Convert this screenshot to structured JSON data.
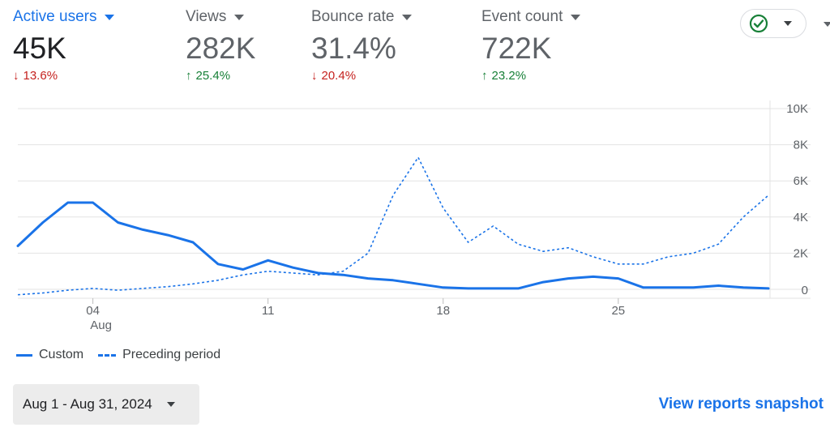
{
  "metrics": [
    {
      "label": "Active users",
      "value": "45K",
      "delta": "13.6%",
      "direction": "down"
    },
    {
      "label": "Views",
      "value": "282K",
      "delta": "25.4%",
      "direction": "up"
    },
    {
      "label": "Bounce rate",
      "value": "31.4%",
      "delta": "20.4%",
      "direction": "down"
    },
    {
      "label": "Event count",
      "value": "722K",
      "delta": "23.2%",
      "direction": "up"
    }
  ],
  "status_chip": {
    "icon": "check-circle-icon",
    "color": "#188038"
  },
  "colors": {
    "accent": "#1a73e8",
    "down": "#c5221f",
    "up": "#188038"
  },
  "chart_data": {
    "type": "line",
    "x_ticks": [
      {
        "day": 4,
        "label": "04",
        "sublabel": "Aug"
      },
      {
        "day": 11,
        "label": "11"
      },
      {
        "day": 18,
        "label": "18"
      },
      {
        "day": 25,
        "label": "25"
      }
    ],
    "y_ticks": [
      "0",
      "2K",
      "4K",
      "6K",
      "8K",
      "10K"
    ],
    "ylim": [
      0,
      10000
    ],
    "series": [
      {
        "name": "Custom",
        "style": "solid",
        "values": [
          {
            "x": 1,
            "y": 2400
          },
          {
            "x": 2,
            "y": 3700
          },
          {
            "x": 3,
            "y": 4800
          },
          {
            "x": 4,
            "y": 4800
          },
          {
            "x": 5,
            "y": 3700
          },
          {
            "x": 6,
            "y": 3300
          },
          {
            "x": 7,
            "y": 3000
          },
          {
            "x": 8,
            "y": 2600
          },
          {
            "x": 9,
            "y": 1400
          },
          {
            "x": 10,
            "y": 1100
          },
          {
            "x": 11,
            "y": 1600
          },
          {
            "x": 12,
            "y": 1200
          },
          {
            "x": 13,
            "y": 900
          },
          {
            "x": 14,
            "y": 800
          },
          {
            "x": 15,
            "y": 600
          },
          {
            "x": 16,
            "y": 500
          },
          {
            "x": 17,
            "y": 300
          },
          {
            "x": 18,
            "y": 100
          },
          {
            "x": 19,
            "y": 50
          },
          {
            "x": 20,
            "y": 50
          },
          {
            "x": 21,
            "y": 50
          },
          {
            "x": 22,
            "y": 400
          },
          {
            "x": 23,
            "y": 600
          },
          {
            "x": 24,
            "y": 700
          },
          {
            "x": 25,
            "y": 600
          },
          {
            "x": 26,
            "y": 100
          },
          {
            "x": 27,
            "y": 100
          },
          {
            "x": 28,
            "y": 100
          },
          {
            "x": 29,
            "y": 200
          },
          {
            "x": 30,
            "y": 100
          },
          {
            "x": 31,
            "y": 50
          }
        ]
      },
      {
        "name": "Preceding period",
        "style": "dashed",
        "values": [
          {
            "x": 1,
            "y": -300
          },
          {
            "x": 2,
            "y": -200
          },
          {
            "x": 3,
            "y": -50
          },
          {
            "x": 4,
            "y": 50
          },
          {
            "x": 5,
            "y": -50
          },
          {
            "x": 6,
            "y": 50
          },
          {
            "x": 7,
            "y": 150
          },
          {
            "x": 8,
            "y": 300
          },
          {
            "x": 9,
            "y": 500
          },
          {
            "x": 10,
            "y": 800
          },
          {
            "x": 11,
            "y": 1000
          },
          {
            "x": 12,
            "y": 900
          },
          {
            "x": 13,
            "y": 800
          },
          {
            "x": 14,
            "y": 1000
          },
          {
            "x": 15,
            "y": 2000
          },
          {
            "x": 16,
            "y": 5200
          },
          {
            "x": 17,
            "y": 7300
          },
          {
            "x": 18,
            "y": 4500
          },
          {
            "x": 19,
            "y": 2600
          },
          {
            "x": 20,
            "y": 3500
          },
          {
            "x": 21,
            "y": 2500
          },
          {
            "x": 22,
            "y": 2100
          },
          {
            "x": 23,
            "y": 2300
          },
          {
            "x": 24,
            "y": 1800
          },
          {
            "x": 25,
            "y": 1400
          },
          {
            "x": 26,
            "y": 1400
          },
          {
            "x": 27,
            "y": 1800
          },
          {
            "x": 28,
            "y": 2000
          },
          {
            "x": 29,
            "y": 2500
          },
          {
            "x": 30,
            "y": 4000
          },
          {
            "x": 31,
            "y": 5200
          }
        ]
      }
    ],
    "grid": true
  },
  "legend": {
    "custom": "Custom",
    "preceding": "Preceding period"
  },
  "date_range": {
    "label": "Aug 1 - Aug 31, 2024"
  },
  "footer": {
    "link_label": "View reports snapshot"
  }
}
